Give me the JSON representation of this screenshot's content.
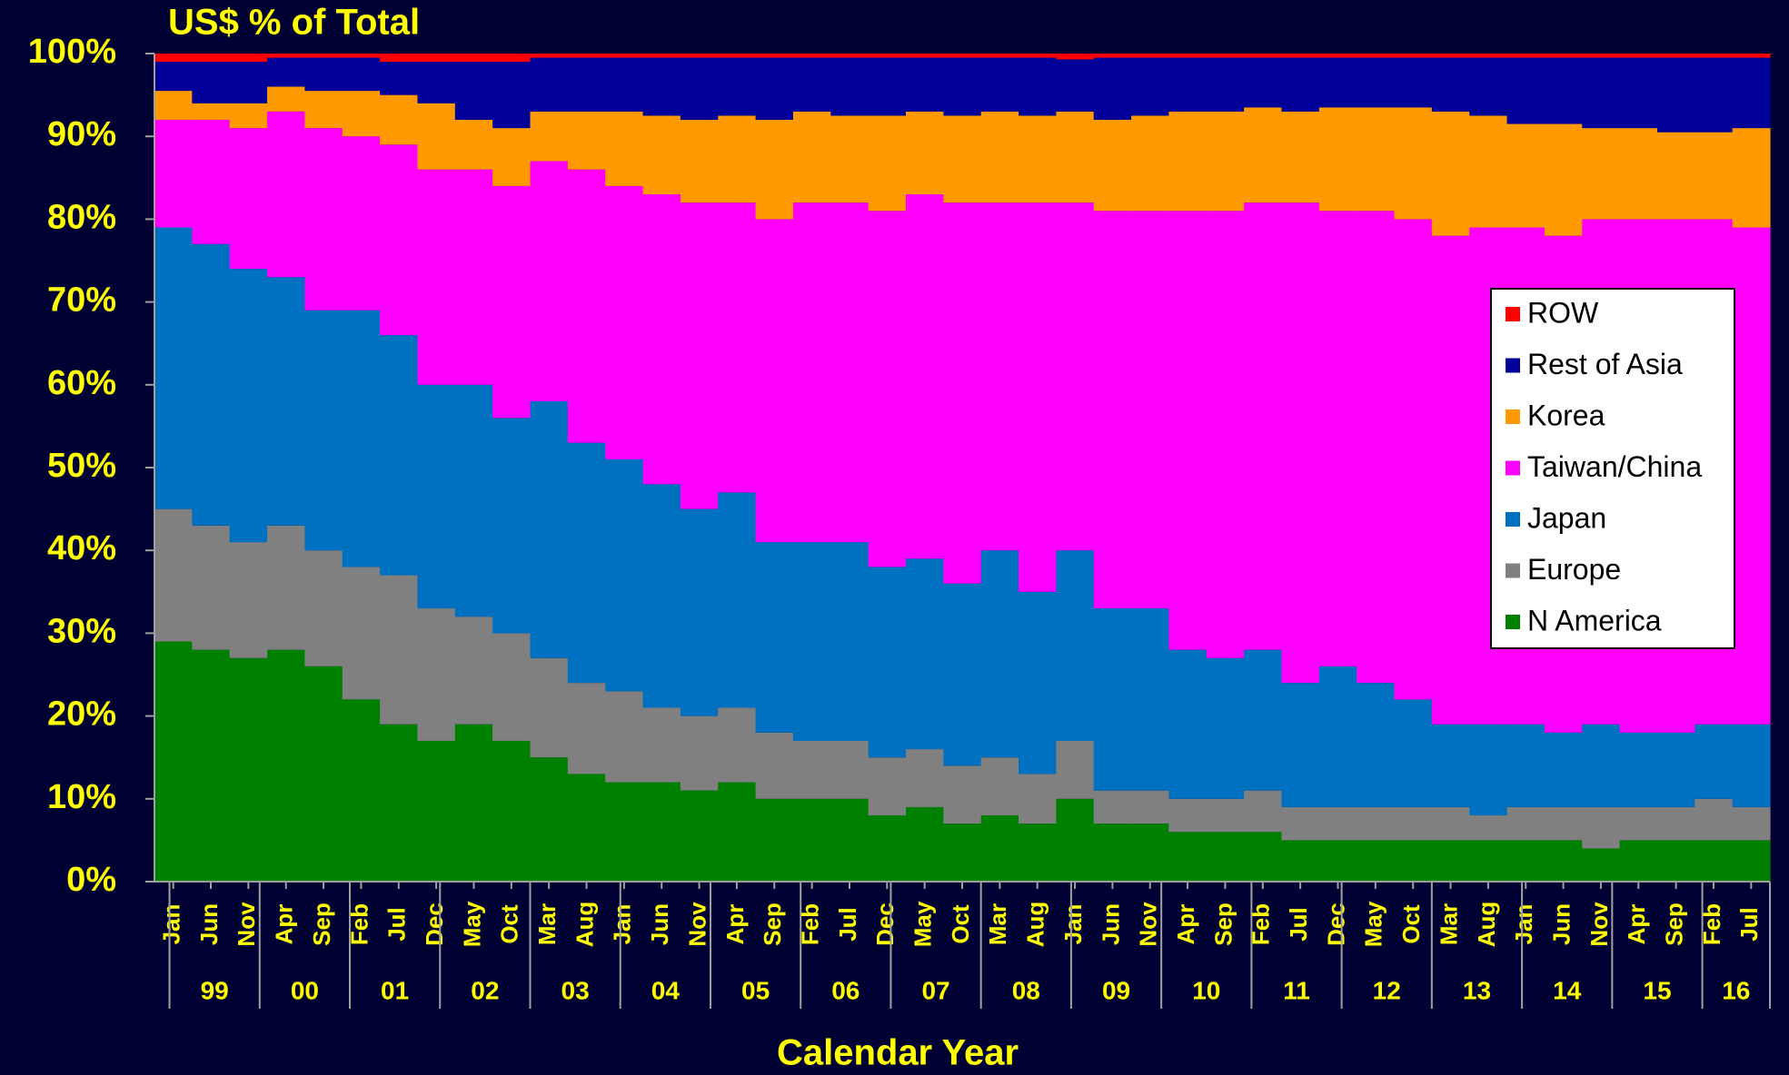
{
  "chart_data": {
    "type": "stacked_bar",
    "title": "US$ % of Total",
    "x_label": "Calendar Year",
    "categories": [
      "Jan",
      "Jun",
      "Nov",
      "Apr",
      "Sep",
      "Feb",
      "Jul",
      "Dec",
      "May",
      "Oct",
      "Mar",
      "Aug",
      "Jan",
      "Jun",
      "Nov",
      "Apr",
      "Sep",
      "Feb",
      "Jul",
      "Dec",
      "May",
      "Oct",
      "Mar",
      "Aug",
      "Jan",
      "Jun",
      "Nov",
      "Apr",
      "Sep",
      "Feb",
      "Jul",
      "Dec",
      "May",
      "Oct",
      "Mar",
      "Aug",
      "Jan",
      "Jun",
      "Nov",
      "Apr",
      "Sep",
      "Feb",
      "Jul"
    ],
    "year_labels": [
      "99",
      "00",
      "01",
      "02",
      "03",
      "04",
      "05",
      "06",
      "07",
      "08",
      "09",
      "10",
      "11",
      "12",
      "13",
      "14",
      "15",
      "16"
    ],
    "series": [
      {
        "name": "N America",
        "color": "#008000",
        "values": [
          29,
          28,
          27,
          28,
          26,
          22,
          19,
          17,
          19,
          17,
          15,
          13,
          12,
          12,
          11,
          12,
          10,
          10,
          10,
          8,
          9,
          7,
          8,
          7,
          10,
          7,
          7,
          6,
          6,
          6,
          5,
          5,
          5,
          5,
          5,
          5,
          5,
          5,
          4,
          5,
          5,
          5,
          5
        ]
      },
      {
        "name": "Europe",
        "color": "#808080",
        "values": [
          16,
          15,
          14,
          15,
          14,
          16,
          18,
          16,
          13,
          13,
          12,
          11,
          11,
          9,
          9,
          9,
          8,
          7,
          7,
          7,
          7,
          7,
          7,
          6,
          7,
          4,
          4,
          4,
          4,
          5,
          4,
          4,
          4,
          4,
          4,
          3,
          4,
          4,
          5,
          4,
          4,
          5,
          4
        ]
      },
      {
        "name": "Japan",
        "color": "#0070c0",
        "values": [
          34,
          34,
          33,
          30,
          29,
          31,
          29,
          27,
          28,
          26,
          31,
          29,
          28,
          27,
          25,
          26,
          23,
          24,
          24,
          23,
          23,
          22,
          25,
          22,
          23,
          22,
          22,
          18,
          17,
          17,
          15,
          17,
          15,
          13,
          10,
          11,
          10,
          9,
          10,
          9,
          9,
          9,
          10
        ]
      },
      {
        "name": "Taiwan/China",
        "color": "#ff00ff",
        "values": [
          13,
          15,
          17,
          20,
          22,
          21,
          23,
          26,
          26,
          28,
          29,
          33,
          33,
          35,
          37,
          35,
          39,
          41,
          41,
          43,
          44,
          46,
          42,
          47,
          42,
          48,
          48,
          53,
          54,
          54,
          58,
          55,
          57,
          58,
          59,
          60,
          60,
          60,
          61,
          62,
          62,
          61,
          60
        ]
      },
      {
        "name": "Korea",
        "color": "#ff9900",
        "values": [
          3.5,
          2,
          3,
          3,
          4.5,
          5.5,
          6,
          8,
          6,
          7,
          6,
          7,
          9,
          9.5,
          10,
          10.5,
          12,
          11,
          10.5,
          11.5,
          10,
          10.5,
          11,
          10.5,
          11,
          11,
          11.5,
          12,
          12,
          11.5,
          11,
          12.5,
          12.5,
          13.5,
          15,
          13.5,
          12.5,
          13.5,
          11,
          11,
          10.5,
          10.5,
          12
        ]
      },
      {
        "name": "Rest of Asia",
        "color": "#000099",
        "values": [
          3.5,
          5,
          5,
          3.5,
          4,
          4,
          4,
          5,
          7,
          8,
          6.5,
          6.5,
          6.5,
          7,
          7.5,
          7,
          7.5,
          6.5,
          7,
          7,
          6.5,
          7,
          6.5,
          7,
          6.3,
          7.5,
          7,
          6.5,
          6.5,
          6,
          6.5,
          6,
          6,
          6,
          6.5,
          7,
          8,
          8,
          8.5,
          8.5,
          9,
          9,
          8.5
        ]
      },
      {
        "name": "ROW",
        "color": "#ff0000",
        "values": [
          1,
          1,
          1,
          0.5,
          0.5,
          0.5,
          1,
          1,
          1,
          1,
          0.5,
          0.5,
          0.5,
          0.5,
          0.5,
          0.5,
          0.5,
          0.5,
          0.5,
          0.5,
          0.5,
          0.5,
          0.5,
          0.5,
          0.7,
          0.5,
          0.5,
          0.5,
          0.5,
          0.5,
          0.5,
          0.5,
          0.5,
          0.5,
          0.5,
          0.5,
          0.5,
          0.5,
          0.5,
          0.5,
          0.5,
          0.5,
          0.5
        ]
      }
    ],
    "ylim": [
      0,
      100
    ],
    "yticks": [
      {
        "value": 0,
        "label": "0%"
      },
      {
        "value": 10,
        "label": "10%"
      },
      {
        "value": 20,
        "label": "20%"
      },
      {
        "value": 30,
        "label": "30%"
      },
      {
        "value": 40,
        "label": "40%"
      },
      {
        "value": 50,
        "label": "50%"
      },
      {
        "value": 60,
        "label": "60%"
      },
      {
        "value": 70,
        "label": "70%"
      },
      {
        "value": 80,
        "label": "80%"
      },
      {
        "value": 90,
        "label": "90%"
      },
      {
        "value": 100,
        "label": "100%"
      }
    ],
    "legend": "right"
  }
}
